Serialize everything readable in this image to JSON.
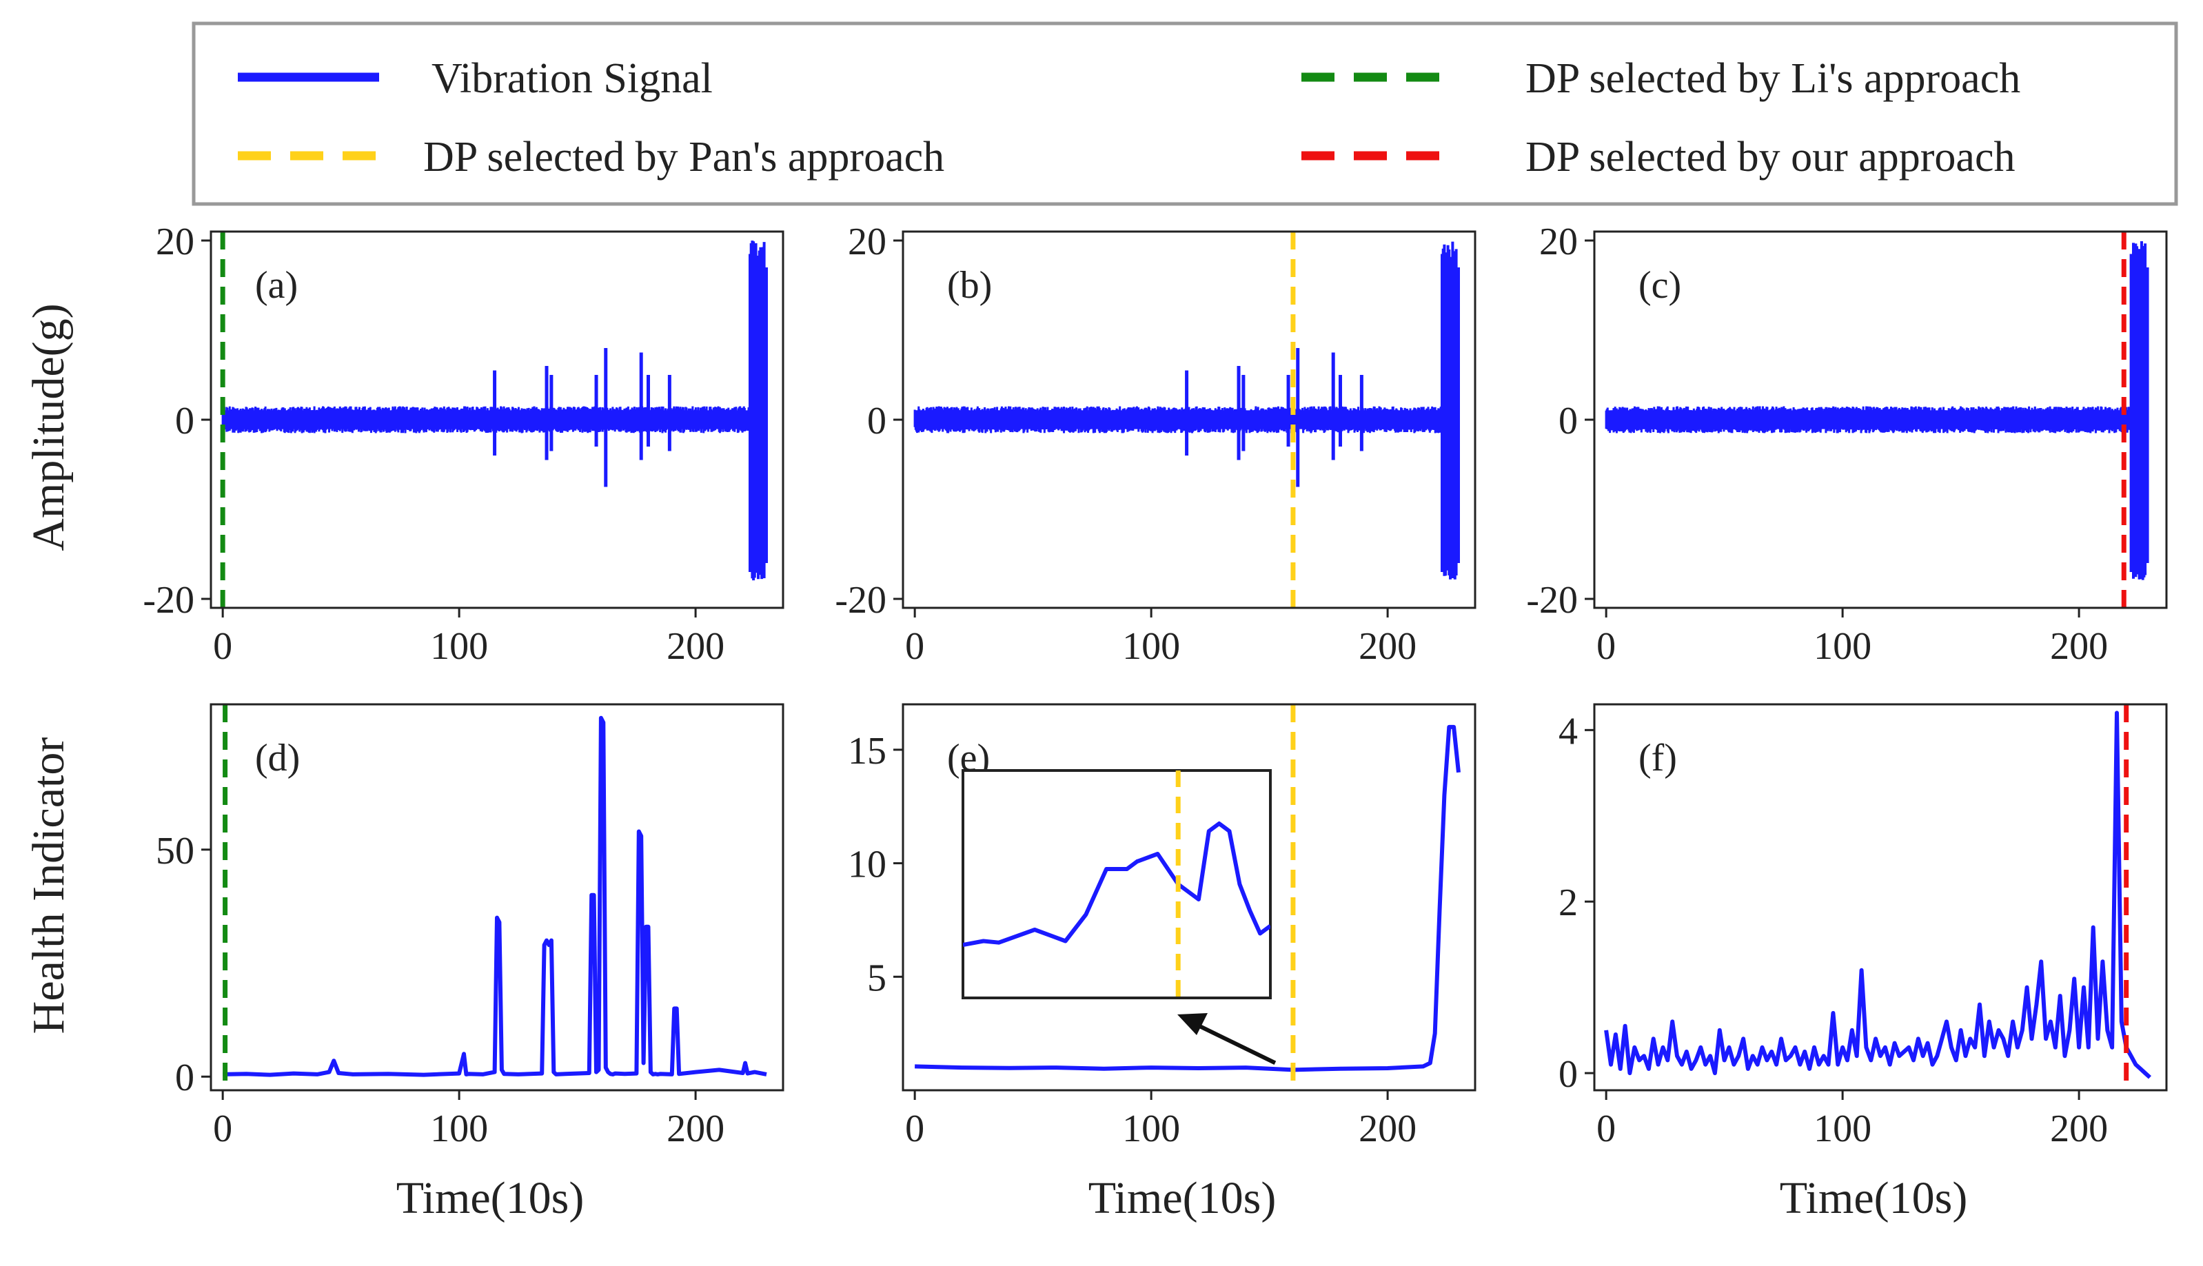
{
  "legend": {
    "entries": [
      {
        "key": "vib",
        "label": "Vibration Signal",
        "color": "#1a1aff",
        "style": "solid"
      },
      {
        "key": "li",
        "label": "DP selected by Li's  approach",
        "color": "#138a13",
        "style": "dashed"
      },
      {
        "key": "pan",
        "label": "DP selected by Pan's  approach",
        "color": "#ffd11a",
        "style": "dashed"
      },
      {
        "key": "our",
        "label": "DP selected by our  approach",
        "color": "#ee1111",
        "style": "dashed"
      }
    ]
  },
  "axis_labels": {
    "amplitude": "Amplitude(g)",
    "health": "Health Indicator",
    "time": "Time(10s)"
  },
  "chart_data": [
    {
      "id": "a",
      "label": "(a)",
      "type": "line",
      "row": "amplitude",
      "xlim": [
        -5,
        237
      ],
      "ylim": [
        -21,
        21
      ],
      "xticks": [
        0,
        100,
        200
      ],
      "yticks": [
        -20,
        0,
        20
      ],
      "xtick_labels": [
        "0",
        "100",
        "200"
      ],
      "ytick_labels": [
        "-20",
        "0",
        "20"
      ],
      "xlabel": "",
      "ylabel": "Amplitude(g)",
      "dp": {
        "x": 0,
        "color": "#138a13"
      },
      "base_band": [
        -1.5,
        1.5
      ],
      "signal_range": [
        0,
        230
      ],
      "spikes": [
        [
          115,
          5.5,
          -4
        ],
        [
          137,
          6,
          -4.5
        ],
        [
          139,
          5,
          -3.5
        ],
        [
          158,
          5,
          -3
        ],
        [
          162,
          8,
          -7.5
        ],
        [
          177,
          7.5,
          -4.5
        ],
        [
          180,
          5,
          -3
        ],
        [
          189,
          5,
          -3.5
        ]
      ],
      "burst": {
        "x": [
          223,
          230
        ],
        "y": [
          -18,
          20
        ]
      }
    },
    {
      "id": "b",
      "label": "(b)",
      "type": "line",
      "row": "amplitude",
      "xlim": [
        -5,
        237
      ],
      "ylim": [
        -21,
        21
      ],
      "xticks": [
        0,
        100,
        200
      ],
      "yticks": [
        -20,
        0,
        20
      ],
      "xtick_labels": [
        "0",
        "100",
        "200"
      ],
      "ytick_labels": [
        "-20",
        "0",
        "20"
      ],
      "xlabel": "",
      "ylabel": "",
      "dp": {
        "x": 160,
        "color": "#ffd11a"
      },
      "base_band": [
        -1.5,
        1.5
      ],
      "signal_range": [
        0,
        230
      ],
      "spikes": [
        [
          115,
          5.5,
          -4
        ],
        [
          137,
          6,
          -4.5
        ],
        [
          139,
          5,
          -3.5
        ],
        [
          158,
          5,
          -3
        ],
        [
          162,
          8,
          -7.5
        ],
        [
          177,
          7.5,
          -4.5
        ],
        [
          180,
          5,
          -3
        ],
        [
          189,
          5,
          -3.5
        ]
      ],
      "burst": {
        "x": [
          223,
          230
        ],
        "y": [
          -18,
          20
        ]
      }
    },
    {
      "id": "c",
      "label": "(c)",
      "type": "line",
      "row": "amplitude",
      "xlim": [
        -5,
        237
      ],
      "ylim": [
        -21,
        21
      ],
      "xticks": [
        0,
        100,
        200
      ],
      "yticks": [
        -20,
        0,
        20
      ],
      "xtick_labels": [
        "0",
        "100",
        "200"
      ],
      "ytick_labels": [
        "-20",
        "0",
        "20"
      ],
      "xlabel": "",
      "ylabel": "",
      "dp": {
        "x": 219,
        "color": "#ee1111"
      },
      "base_band": [
        -1.5,
        1.5
      ],
      "signal_range": [
        0,
        222
      ],
      "spikes": [],
      "burst": {
        "x": [
          222,
          229
        ],
        "y": [
          -18,
          20
        ]
      }
    },
    {
      "id": "d",
      "label": "(d)",
      "type": "line",
      "row": "health",
      "xlim": [
        -5,
        237
      ],
      "ylim": [
        -3,
        82
      ],
      "xticks": [
        0,
        100,
        200
      ],
      "yticks": [
        0,
        50
      ],
      "xtick_labels": [
        "0",
        "100",
        "200"
      ],
      "ytick_labels": [
        "0",
        "50"
      ],
      "xlabel": "Time(10s)",
      "ylabel": "Health Indicator",
      "dp": {
        "x": 1,
        "color": "#138a13"
      },
      "series": {
        "x": [
          0,
          10,
          20,
          30,
          40,
          45,
          47,
          49,
          55,
          70,
          85,
          100,
          102,
          103,
          104,
          110,
          115,
          116,
          117,
          118,
          119,
          125,
          135,
          136,
          137,
          138,
          139,
          140,
          141,
          145,
          155,
          156,
          157,
          158,
          159,
          160,
          161,
          162,
          163,
          164,
          165,
          166,
          170,
          175,
          176,
          177,
          178,
          179,
          180,
          181,
          182,
          183,
          184,
          185,
          190,
          191,
          192,
          193,
          200,
          210,
          220,
          221,
          222,
          225,
          230
        ],
        "y": [
          0.5,
          0.6,
          0.4,
          0.7,
          0.5,
          1.0,
          3.5,
          0.8,
          0.5,
          0.6,
          0.4,
          0.7,
          5.0,
          0.5,
          0.6,
          0.5,
          1.0,
          35,
          34,
          1.5,
          0.6,
          0.5,
          0.7,
          29,
          30,
          29,
          30,
          1.0,
          0.5,
          0.6,
          0.8,
          40,
          40,
          1.0,
          1.5,
          79,
          78,
          2,
          1.0,
          0.6,
          0.5,
          0.7,
          0.6,
          0.7,
          54,
          53,
          3,
          33,
          33,
          1.0,
          0.5,
          0.6,
          0.5,
          0.6,
          0.5,
          15,
          15,
          0.6,
          1.0,
          1.5,
          0.8,
          3.0,
          0.7,
          1.0,
          0.5
        ]
      }
    },
    {
      "id": "e",
      "label": "(e)",
      "type": "line",
      "row": "health",
      "xlim": [
        -5,
        237
      ],
      "ylim": [
        0,
        17
      ],
      "xticks": [
        0,
        100,
        200
      ],
      "yticks": [
        5,
        10,
        15
      ],
      "xtick_labels": [
        "0",
        "100",
        "200"
      ],
      "ytick_labels": [
        "5",
        "10",
        "15"
      ],
      "xlabel": "Time(10s)",
      "ylabel": "",
      "dp": {
        "x": 160,
        "color": "#ffd11a"
      },
      "series": {
        "x": [
          0,
          20,
          40,
          60,
          80,
          100,
          120,
          140,
          160,
          180,
          200,
          215,
          218,
          220,
          222,
          224,
          226,
          228,
          230
        ],
        "y": [
          1.05,
          1.0,
          0.98,
          1.0,
          0.95,
          1.0,
          0.97,
          1.0,
          0.9,
          0.95,
          0.97,
          1.05,
          1.2,
          2.5,
          8,
          13,
          16,
          16,
          14
        ]
      },
      "inset": {
        "dp_x": 160,
        "xlim": [
          118,
          178
        ],
        "ylim": [
          -2,
          28
        ],
        "series": {
          "x": [
            118,
            122,
            125,
            132,
            138,
            142,
            146,
            150,
            152,
            156,
            160,
            164,
            166,
            168,
            170,
            172,
            174,
            176,
            178
          ],
          "y": [
            5,
            5.5,
            5.3,
            7,
            5.5,
            9,
            15,
            15,
            16,
            17,
            13,
            11,
            20,
            21,
            20,
            13,
            9.5,
            6.5,
            7.5
          ]
        }
      }
    },
    {
      "id": "f",
      "label": "(f)",
      "type": "line",
      "row": "health",
      "xlim": [
        -5,
        237
      ],
      "ylim": [
        -0.2,
        4.3
      ],
      "xticks": [
        0,
        100,
        200
      ],
      "yticks": [
        0,
        2,
        4
      ],
      "xtick_labels": [
        "0",
        "100",
        "200"
      ],
      "ytick_labels": [
        "0",
        "2",
        "4"
      ],
      "xlabel": "Time(10s)",
      "ylabel": "",
      "dp": {
        "x": 220,
        "color": "#ee1111"
      },
      "series": {
        "x": [
          0,
          2,
          4,
          6,
          8,
          10,
          12,
          14,
          16,
          18,
          20,
          22,
          24,
          26,
          28,
          30,
          32,
          34,
          36,
          38,
          40,
          42,
          44,
          46,
          48,
          50,
          52,
          54,
          56,
          58,
          60,
          62,
          64,
          66,
          68,
          70,
          72,
          74,
          76,
          78,
          80,
          82,
          84,
          86,
          88,
          90,
          92,
          94,
          96,
          98,
          100,
          102,
          104,
          106,
          108,
          110,
          112,
          114,
          116,
          118,
          120,
          122,
          124,
          126,
          128,
          130,
          132,
          134,
          136,
          138,
          140,
          142,
          144,
          146,
          148,
          150,
          152,
          154,
          156,
          158,
          160,
          162,
          164,
          166,
          168,
          170,
          172,
          174,
          176,
          178,
          180,
          182,
          184,
          186,
          188,
          190,
          192,
          194,
          196,
          198,
          200,
          202,
          204,
          206,
          208,
          210,
          212,
          214,
          216,
          218,
          220,
          222,
          224,
          226,
          228,
          230
        ],
        "y": [
          0.5,
          0.1,
          0.45,
          0.05,
          0.55,
          0.0,
          0.3,
          0.15,
          0.2,
          0.05,
          0.4,
          0.1,
          0.3,
          0.15,
          0.6,
          0.2,
          0.1,
          0.25,
          0.05,
          0.15,
          0.3,
          0.1,
          0.2,
          0.0,
          0.5,
          0.15,
          0.3,
          0.1,
          0.2,
          0.4,
          0.05,
          0.2,
          0.1,
          0.3,
          0.15,
          0.25,
          0.1,
          0.4,
          0.15,
          0.2,
          0.3,
          0.1,
          0.25,
          0.05,
          0.3,
          0.1,
          0.2,
          0.1,
          0.7,
          0.1,
          0.3,
          0.15,
          0.5,
          0.2,
          1.2,
          0.3,
          0.15,
          0.4,
          0.2,
          0.3,
          0.1,
          0.35,
          0.2,
          0.25,
          0.3,
          0.15,
          0.4,
          0.2,
          0.35,
          0.1,
          0.2,
          0.4,
          0.6,
          0.3,
          0.15,
          0.5,
          0.2,
          0.4,
          0.3,
          0.8,
          0.2,
          0.6,
          0.3,
          0.5,
          0.4,
          0.2,
          0.6,
          0.3,
          0.5,
          1.0,
          0.4,
          0.8,
          1.3,
          0.4,
          0.6,
          0.3,
          0.9,
          0.2,
          0.5,
          1.1,
          0.3,
          1.0,
          0.3,
          1.7,
          0.4,
          1.3,
          0.5,
          0.3,
          4.2,
          0.6,
          0.3,
          0.2,
          0.1,
          0.05,
          0.0,
          -0.05
        ]
      }
    }
  ]
}
